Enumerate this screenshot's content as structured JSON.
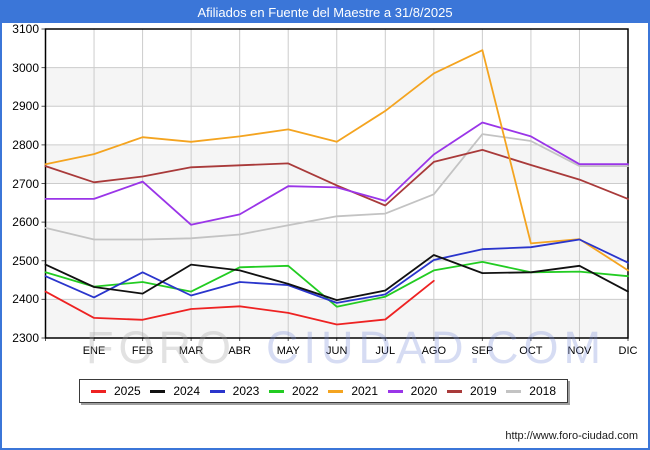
{
  "header": {
    "title": "Afiliados en Fuente del Maestre a 31/8/2025"
  },
  "watermark": {
    "part1": "FORO",
    "part2": "CIUDAD.COM"
  },
  "footer": {
    "url": "http://www.foro-ciudad.com"
  },
  "colors": {
    "frame": "#3b76d8",
    "titlebar_bg": "#3b76d8",
    "title_text": "#ffffff",
    "grid": "#cccccc",
    "band": "#f5f5f5",
    "plot_border": "#000000"
  },
  "chart_data": {
    "type": "line",
    "title": "Afiliados en Fuente del Maestre a 31/8/2025",
    "x_categories": [
      "",
      "ENE",
      "FEB",
      "MAR",
      "ABR",
      "MAY",
      "JUN",
      "JUL",
      "AGO",
      "SEP",
      "OCT",
      "NOV",
      "DIC"
    ],
    "ylim": [
      2300,
      3100
    ],
    "yticks": [
      2300,
      2400,
      2500,
      2600,
      2700,
      2800,
      2900,
      3000,
      3100
    ],
    "grid": true,
    "legend_position": "bottom",
    "series": [
      {
        "name": "2025",
        "color": "#ee2222",
        "values": [
          2420,
          2352,
          2347,
          2375,
          2382,
          2365,
          2335,
          2348,
          2448
        ]
      },
      {
        "name": "2024",
        "color": "#111111",
        "values": [
          2490,
          2432,
          2415,
          2490,
          2475,
          2440,
          2398,
          2423,
          2515,
          2468,
          2470,
          2487,
          2420
        ]
      },
      {
        "name": "2023",
        "color": "#2a35cc",
        "values": [
          2460,
          2405,
          2470,
          2410,
          2445,
          2437,
          2391,
          2413,
          2502,
          2530,
          2535,
          2555,
          2495
        ]
      },
      {
        "name": "2022",
        "color": "#22cc22",
        "values": [
          2470,
          2433,
          2445,
          2420,
          2483,
          2487,
          2381,
          2407,
          2475,
          2497,
          2470,
          2472,
          2460
        ]
      },
      {
        "name": "2021",
        "color": "#f4a420",
        "values": [
          2750,
          2776,
          2820,
          2808,
          2822,
          2840,
          2808,
          2888,
          2985,
          3045,
          2545,
          2556,
          2475
        ]
      },
      {
        "name": "2020",
        "color": "#9a35e8",
        "values": [
          2660,
          2660,
          2705,
          2593,
          2620,
          2693,
          2690,
          2655,
          2775,
          2858,
          2822,
          2750,
          2750
        ]
      },
      {
        "name": "2019",
        "color": "#a93a3a",
        "values": [
          2745,
          2703,
          2718,
          2742,
          2747,
          2752,
          2695,
          2643,
          2756,
          2787,
          2748,
          2710,
          2660
        ]
      },
      {
        "name": "2018",
        "color": "#c3c3c3",
        "values": [
          2585,
          2555,
          2555,
          2558,
          2568,
          2592,
          2615,
          2622,
          2672,
          2828,
          2810,
          2745,
          2745
        ]
      }
    ]
  }
}
